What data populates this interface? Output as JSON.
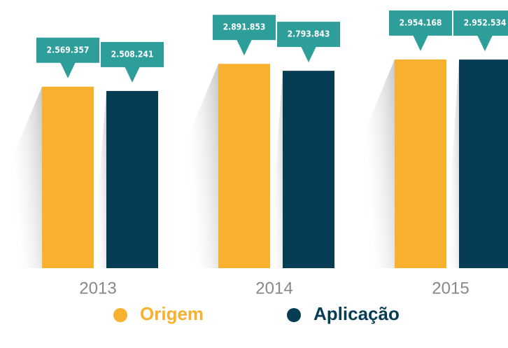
{
  "chart_data": {
    "type": "bar",
    "categories": [
      "2013",
      "2014",
      "2015"
    ],
    "series": [
      {
        "name": "Origem",
        "color": "#f8b02f",
        "values": [
          2569357,
          2891853,
          2954168
        ],
        "value_labels": [
          "2.569.357",
          "2.891.853",
          "2.954.168"
        ]
      },
      {
        "name": "Aplicação",
        "color": "#073d54",
        "values": [
          2508241,
          2793843,
          2952534
        ],
        "value_labels": [
          "2.508.241",
          "2.793.843",
          "2.952.534"
        ]
      }
    ],
    "label_color": "#2e9e9b"
  }
}
